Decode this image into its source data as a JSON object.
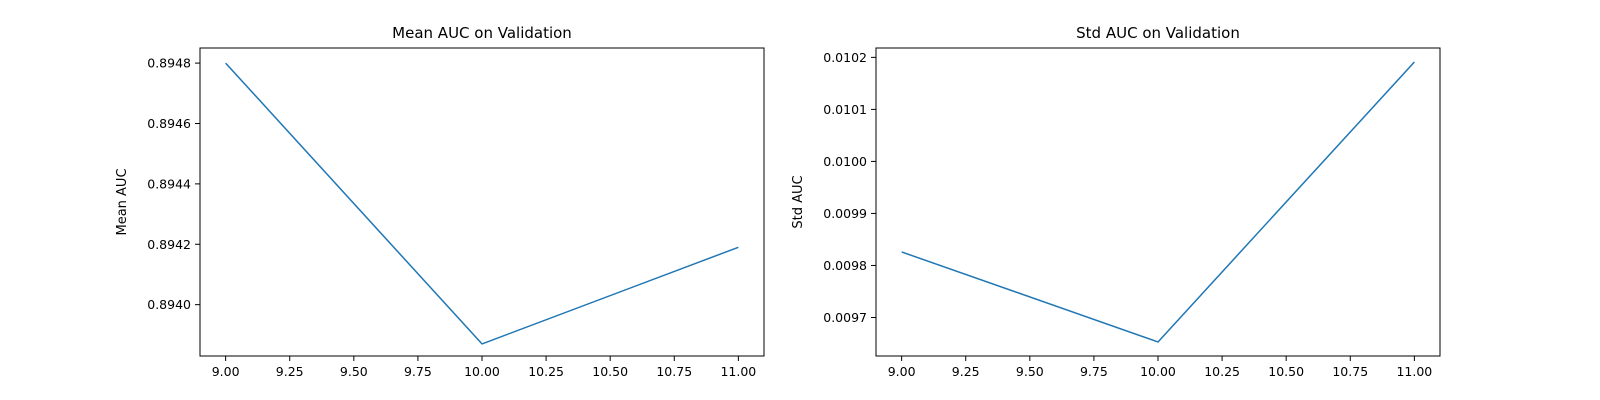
{
  "chart_data": [
    {
      "type": "line",
      "title": "Mean AUC on Validation",
      "xlabel": "",
      "ylabel": "Mean AUC",
      "x": [
        9.0,
        10.0,
        11.0
      ],
      "series": [
        {
          "values": [
            0.8948,
            0.89387,
            0.89419
          ],
          "color": "#1f77b4"
        }
      ],
      "xlim": [
        8.9,
        11.1
      ],
      "ylim": [
        0.89383,
        0.89485
      ],
      "xticks": [
        9.0,
        9.25,
        9.5,
        9.75,
        10.0,
        10.25,
        10.5,
        10.75,
        11.0
      ],
      "xtick_labels": [
        "9.00",
        "9.25",
        "9.50",
        "9.75",
        "10.00",
        "10.25",
        "10.50",
        "10.75",
        "11.00"
      ],
      "yticks": [
        0.894,
        0.8942,
        0.8944,
        0.8946,
        0.8948
      ],
      "ytick_labels": [
        "0.8940",
        "0.8942",
        "0.8944",
        "0.8946",
        "0.8948"
      ],
      "grid": false
    },
    {
      "type": "line",
      "title": "Std AUC on Validation",
      "xlabel": "",
      "ylabel": "Std AUC",
      "x": [
        9.0,
        10.0,
        11.0
      ],
      "series": [
        {
          "values": [
            0.009826,
            0.009653,
            0.010191
          ],
          "color": "#1f77b4"
        }
      ],
      "xlim": [
        8.9,
        11.1
      ],
      "ylim": [
        0.009626,
        0.010218
      ],
      "xticks": [
        9.0,
        9.25,
        9.5,
        9.75,
        10.0,
        10.25,
        10.5,
        10.75,
        11.0
      ],
      "xtick_labels": [
        "9.00",
        "9.25",
        "9.50",
        "9.75",
        "10.00",
        "10.25",
        "10.50",
        "10.75",
        "11.00"
      ],
      "yticks": [
        0.0097,
        0.0098,
        0.0099,
        0.01,
        0.0101,
        0.0102
      ],
      "ytick_labels": [
        "0.0097",
        "0.0098",
        "0.0099",
        "0.0100",
        "0.0101",
        "0.0102"
      ],
      "grid": false
    }
  ]
}
